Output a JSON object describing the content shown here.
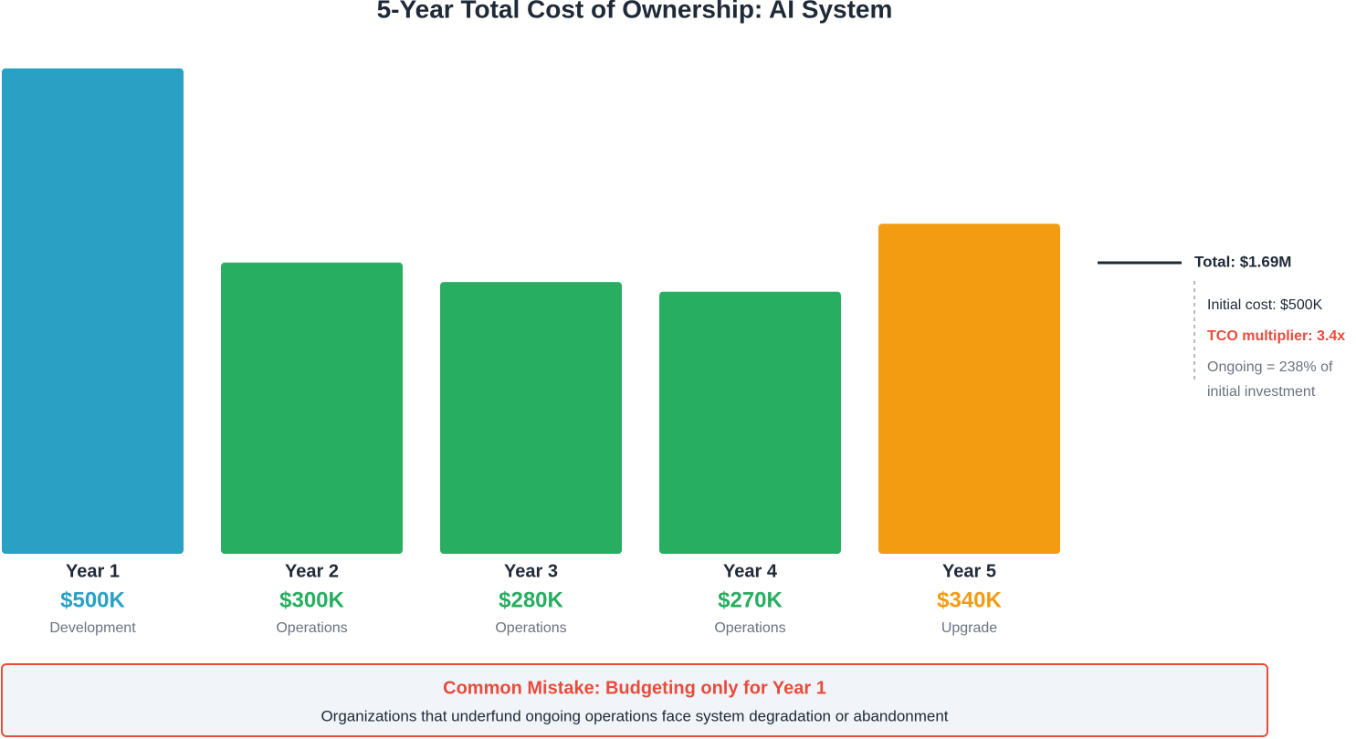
{
  "chart_data": {
    "type": "bar",
    "title": "5-Year Total Cost of Ownership: AI System",
    "categories": [
      "Year 1",
      "Year 2",
      "Year 3",
      "Year 4",
      "Year 5"
    ],
    "values": [
      500,
      300,
      280,
      270,
      340
    ],
    "value_labels": [
      "$500K",
      "$300K",
      "$280K",
      "$270K",
      "$340K"
    ],
    "descriptions": [
      "Development",
      "Operations",
      "Operations",
      "Operations",
      "Upgrade"
    ],
    "colors": [
      "#2aa0c5",
      "#27ae60",
      "#27ae60",
      "#27ae60",
      "#f39c12"
    ],
    "ylim": [
      0,
      500
    ],
    "annotation": {
      "total": "Total: $1.69M",
      "initial": "Initial cost: $500K",
      "multiplier": "TCO multiplier: 3.4x",
      "ongoing": "Ongoing = 238% of initial investment"
    },
    "callout": {
      "title": "Common Mistake: Budgeting only for Year 1",
      "text": "Organizations that underfund ongoing operations face system degradation or abandonment"
    }
  }
}
